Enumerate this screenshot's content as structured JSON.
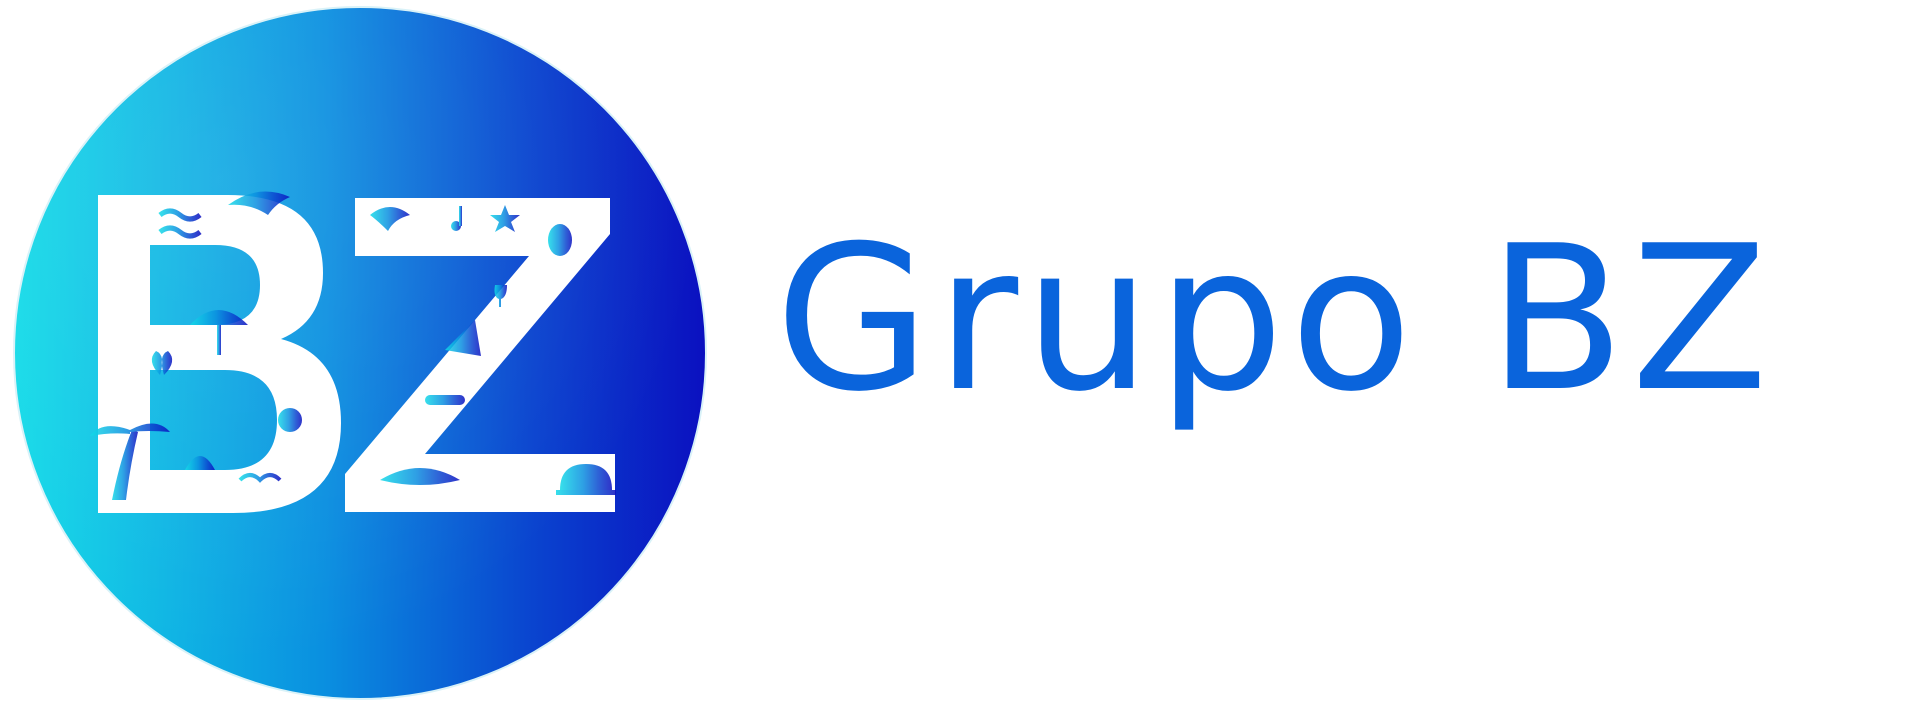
{
  "logo": {
    "monogram": "BZ",
    "wordmark": "Grupo BZ",
    "circle_gradient": [
      "#12d4e6",
      "#0a5fd6",
      "#0b11c2"
    ],
    "wordmark_color": "#0a64dc",
    "glyph_color": "#ffffff",
    "icons": [
      "wave-icon",
      "dolphin-icon",
      "palm-tree-icon",
      "star-icon",
      "music-note-icon",
      "hot-air-balloon-icon",
      "cocktail-glass-icon",
      "handshake-icon",
      "whale-icon",
      "service-bell-icon",
      "crab-icon",
      "umbrella-icon",
      "butterfly-icon",
      "shell-icon",
      "fork-knife-icon",
      "sun-icon",
      "cloud-icon",
      "wine-glasses-icon",
      "pizza-icon",
      "seagull-icon"
    ]
  }
}
